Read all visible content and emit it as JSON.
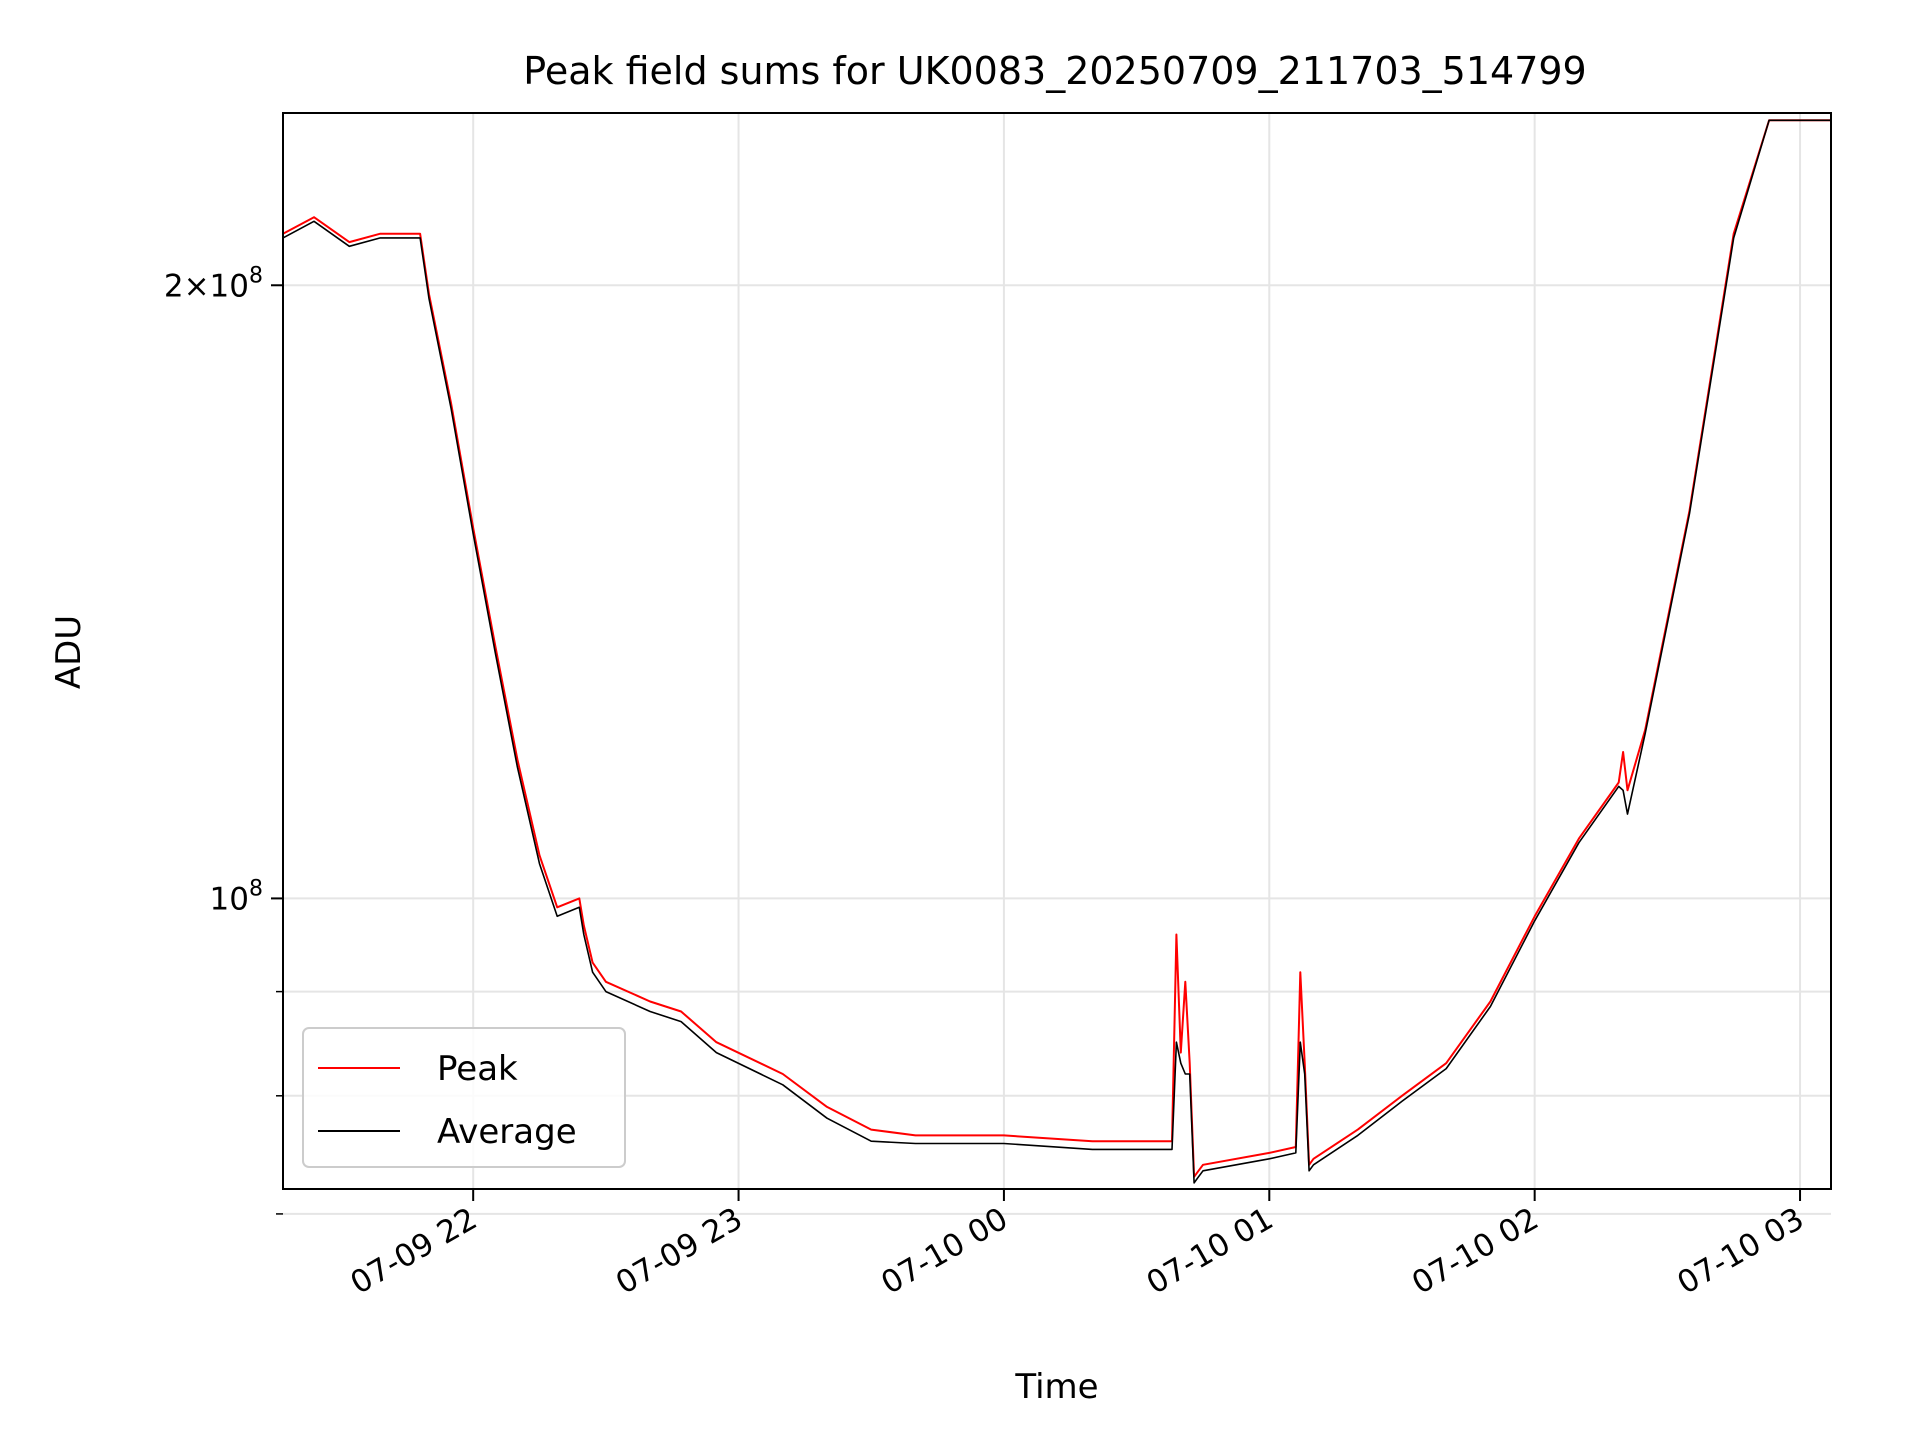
{
  "chart_data": {
    "type": "line",
    "title": "Peak field sums for UK0083_20250709_211703_514799",
    "xlabel": "Time",
    "ylabel": "ADU",
    "x_scale": "time",
    "y_scale": "log",
    "xlim": [
      "2025-07-09 21:17",
      "2025-07-10 03:07"
    ],
    "ylim": [
      72000000,
      243000000
    ],
    "grid": true,
    "legend": {
      "position": "lower-left"
    },
    "x_ticks": [
      {
        "value": "2025-07-09 22:00",
        "label": "07-09 22"
      },
      {
        "value": "2025-07-09 23:00",
        "label": "07-09 23"
      },
      {
        "value": "2025-07-10 00:00",
        "label": "07-10 00"
      },
      {
        "value": "2025-07-10 01:00",
        "label": "07-10 01"
      },
      {
        "value": "2025-07-10 02:00",
        "label": "07-10 02"
      },
      {
        "value": "2025-07-10 03:00",
        "label": "07-10 03"
      }
    ],
    "y_ticks": [
      {
        "value": 100000000,
        "base": "10",
        "exp": "8"
      },
      {
        "value": 200000000,
        "mult": "2",
        "base": "10",
        "exp": "8"
      }
    ],
    "y_minor_ticks": [
      70000000,
      80000000,
      90000000
    ],
    "series": [
      {
        "name": "Peak",
        "color": "#ff0000",
        "x": [
          "2025-07-09 21:17",
          "2025-07-09 21:24",
          "2025-07-09 21:32",
          "2025-07-09 21:39",
          "2025-07-09 21:48",
          "2025-07-09 21:50",
          "2025-07-09 21:55",
          "2025-07-09 22:00",
          "2025-07-09 22:05",
          "2025-07-09 22:10",
          "2025-07-09 22:15",
          "2025-07-09 22:19",
          "2025-07-09 22:24",
          "2025-07-09 22:25",
          "2025-07-09 22:27",
          "2025-07-09 22:30",
          "2025-07-09 22:40",
          "2025-07-09 22:47",
          "2025-07-09 22:55",
          "2025-07-09 23:10",
          "2025-07-09 23:20",
          "2025-07-09 23:30",
          "2025-07-09 23:40",
          "2025-07-10 00:00",
          "2025-07-10 00:20",
          "2025-07-10 00:38",
          "2025-07-10 00:39",
          "2025-07-10 00:40",
          "2025-07-10 00:41",
          "2025-07-10 00:42",
          "2025-07-10 00:43",
          "2025-07-10 00:44",
          "2025-07-10 00:45",
          "2025-07-10 01:00",
          "2025-07-10 01:06",
          "2025-07-10 01:07",
          "2025-07-10 01:08",
          "2025-07-10 01:09",
          "2025-07-10 01:10",
          "2025-07-10 01:20",
          "2025-07-10 01:30",
          "2025-07-10 01:40",
          "2025-07-10 01:50",
          "2025-07-10 02:00",
          "2025-07-10 02:10",
          "2025-07-10 02:19",
          "2025-07-10 02:20",
          "2025-07-10 02:21",
          "2025-07-10 02:25",
          "2025-07-10 02:35",
          "2025-07-10 02:45",
          "2025-07-10 02:53",
          "2025-07-10 03:07"
        ],
        "values": [
          212000000,
          216000000,
          210000000,
          212000000,
          212000000,
          198000000,
          175000000,
          152000000,
          133000000,
          117000000,
          105000000,
          99000000,
          100000000,
          97000000,
          93000000,
          91000000,
          89000000,
          88000000,
          85000000,
          82000000,
          79000000,
          77000000,
          76500000,
          76500000,
          76000000,
          76000000,
          96000000,
          84000000,
          91000000,
          83000000,
          73000000,
          73500000,
          74000000,
          75000000,
          75500000,
          92000000,
          83000000,
          74000000,
          74500000,
          77000000,
          80000000,
          83000000,
          89000000,
          98000000,
          107000000,
          114000000,
          118000000,
          113000000,
          121000000,
          155000000,
          212000000,
          241000000,
          241000000
        ]
      },
      {
        "name": "Average",
        "color": "#000000",
        "x": [
          "2025-07-09 21:17",
          "2025-07-09 21:24",
          "2025-07-09 21:32",
          "2025-07-09 21:39",
          "2025-07-09 21:48",
          "2025-07-09 21:50",
          "2025-07-09 21:55",
          "2025-07-09 22:00",
          "2025-07-09 22:05",
          "2025-07-09 22:10",
          "2025-07-09 22:15",
          "2025-07-09 22:19",
          "2025-07-09 22:24",
          "2025-07-09 22:25",
          "2025-07-09 22:27",
          "2025-07-09 22:30",
          "2025-07-09 22:40",
          "2025-07-09 22:47",
          "2025-07-09 22:55",
          "2025-07-09 23:10",
          "2025-07-09 23:20",
          "2025-07-09 23:30",
          "2025-07-09 23:40",
          "2025-07-10 00:00",
          "2025-07-10 00:20",
          "2025-07-10 00:38",
          "2025-07-10 00:39",
          "2025-07-10 00:40",
          "2025-07-10 00:41",
          "2025-07-10 00:42",
          "2025-07-10 00:43",
          "2025-07-10 00:44",
          "2025-07-10 00:45",
          "2025-07-10 01:00",
          "2025-07-10 01:06",
          "2025-07-10 01:07",
          "2025-07-10 01:08",
          "2025-07-10 01:09",
          "2025-07-10 01:10",
          "2025-07-10 01:20",
          "2025-07-10 01:30",
          "2025-07-10 01:40",
          "2025-07-10 01:50",
          "2025-07-10 02:00",
          "2025-07-10 02:10",
          "2025-07-10 02:19",
          "2025-07-10 02:20",
          "2025-07-10 02:21",
          "2025-07-10 02:25",
          "2025-07-10 02:35",
          "2025-07-10 02:45",
          "2025-07-10 02:53",
          "2025-07-10 03:07"
        ],
        "values": [
          211000000,
          215000000,
          209000000,
          211000000,
          211000000,
          197000000,
          174000000,
          151000000,
          132000000,
          116000000,
          104000000,
          98000000,
          99000000,
          96000000,
          92000000,
          90000000,
          88000000,
          87000000,
          84000000,
          81000000,
          78000000,
          76000000,
          75800000,
          75800000,
          75300000,
          75300000,
          85000000,
          83000000,
          82000000,
          82000000,
          72500000,
          73000000,
          73500000,
          74500000,
          75000000,
          85000000,
          82000000,
          73500000,
          74000000,
          76500000,
          79500000,
          82500000,
          88500000,
          97500000,
          106500000,
          113500000,
          113000000,
          110000000,
          120500000,
          154500000,
          211000000,
          241000000,
          241000000
        ]
      }
    ]
  }
}
